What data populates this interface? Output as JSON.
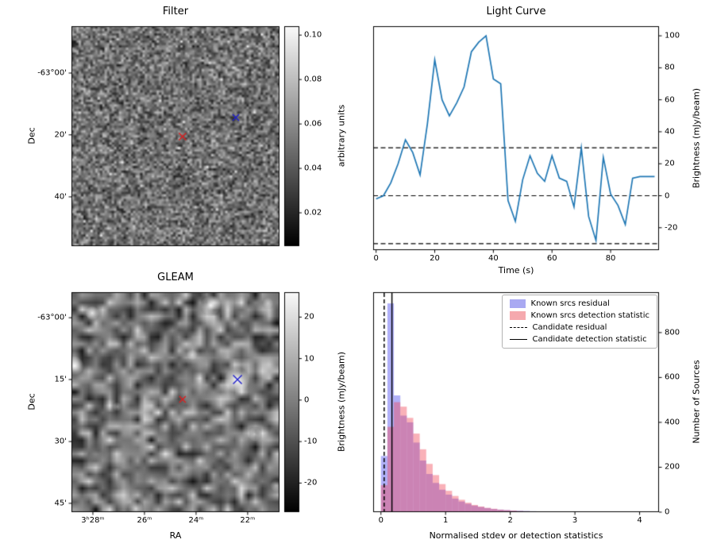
{
  "image_panels": [
    {
      "id": "filter",
      "title": "Filter",
      "ylabel": "Dec",
      "yticks": [
        {
          "label": "-63°00'",
          "f": 0.213
        },
        {
          "label": "20'",
          "f": 0.494
        },
        {
          "label": "40'",
          "f": 0.776
        }
      ],
      "xticks": [],
      "colorbar": {
        "label": "arbitrary units",
        "vmin": 0.005,
        "vmax": 0.104,
        "ticks": [
          {
            "label": "0.10",
            "v": 0.1
          },
          {
            "label": "0.08",
            "v": 0.08
          },
          {
            "label": "0.06",
            "v": 0.06
          },
          {
            "label": "0.04",
            "v": 0.04
          },
          {
            "label": "0.02",
            "v": 0.02
          }
        ]
      },
      "markers": [
        {
          "shape": "x",
          "color": "#dd2020",
          "fx": 0.534,
          "fy": 0.502,
          "size": 9
        },
        {
          "shape": "x",
          "color": "#2020cc",
          "fx": 0.79,
          "fy": 0.415,
          "size": 8
        }
      ]
    },
    {
      "id": "gleam",
      "title": "GLEAM",
      "ylabel": "Dec",
      "xlabel": "RA",
      "yticks": [
        {
          "label": "-63°00'",
          "f": 0.116
        },
        {
          "label": "15'",
          "f": 0.397
        },
        {
          "label": "30'",
          "f": 0.679
        },
        {
          "label": "45'",
          "f": 0.96
        }
      ],
      "xticks": [
        {
          "label": "3ʰ28ᵐ",
          "f": 0.103
        },
        {
          "label": "26ᵐ",
          "f": 0.351
        },
        {
          "label": "24ᵐ",
          "f": 0.599
        },
        {
          "label": "22ᵐ",
          "f": 0.847
        }
      ],
      "colorbar": {
        "label": "Brightness (mJy/beam)",
        "vmin": -27,
        "vmax": 26,
        "ticks": [
          {
            "label": "20",
            "v": 20
          },
          {
            "label": "10",
            "v": 10
          },
          {
            "label": "0",
            "v": 0
          },
          {
            "label": "-10",
            "v": -10
          },
          {
            "label": "-20",
            "v": -20
          }
        ]
      },
      "markers": [
        {
          "shape": "x",
          "color": "#dd2020",
          "fx": 0.534,
          "fy": 0.487,
          "size": 8
        },
        {
          "shape": "x",
          "color": "#2020cc",
          "fx": 0.798,
          "fy": 0.397,
          "size": 11
        }
      ]
    }
  ],
  "chart_data": [
    {
      "id": "light_curve",
      "type": "line",
      "title": "Light Curve",
      "xlabel": "Time (s)",
      "ylabel": "Brightness (mJy/beam)",
      "xlim": [
        -1,
        96.5
      ],
      "ylim": [
        -34,
        106
      ],
      "xticks": [
        0,
        20,
        40,
        60,
        80
      ],
      "yticks": [
        -20,
        0,
        20,
        40,
        60,
        80,
        100
      ],
      "yaxis_side": "right",
      "line_color": "#1f77b4",
      "threshold_lines": {
        "style": "dashed",
        "color": "#000000",
        "values": [
          30,
          0,
          -30
        ]
      },
      "x": [
        0,
        2.5,
        5,
        7.5,
        10,
        12.5,
        15,
        17.5,
        20,
        22.5,
        25,
        27.5,
        30,
        32.5,
        35,
        37.5,
        40,
        42.5,
        45,
        47.5,
        50,
        52.5,
        55,
        57.5,
        60,
        62.5,
        65,
        67.5,
        70,
        72.5,
        75,
        77.5,
        80,
        82.5,
        85,
        87.5,
        90,
        92.5,
        95
      ],
      "y": [
        -2,
        0,
        8,
        20,
        35,
        27,
        13,
        45,
        85,
        60,
        50,
        58,
        68,
        90,
        96,
        100,
        73,
        70,
        -3,
        -16,
        10,
        25,
        14,
        9,
        25,
        11,
        9,
        -7,
        30,
        -13,
        -28,
        24,
        1,
        -6,
        -18,
        11,
        12,
        12,
        12
      ]
    },
    {
      "id": "histogram",
      "type": "bar",
      "title": "",
      "xlabel": "Normalised stdev or detection statistics",
      "ylabel": "Number of Sources",
      "xlim": [
        -0.12,
        4.3
      ],
      "ylim": [
        0,
        980
      ],
      "xticks": [
        0,
        1,
        2,
        3,
        4
      ],
      "yticks": [
        0,
        200,
        400,
        600,
        800
      ],
      "yaxis_side": "right",
      "bin_start": 0,
      "bin_width": 0.1,
      "series": [
        {
          "name": "Known srcs residual",
          "color": "rgba(80,80,240,0.45)",
          "legend_color": "#a9a9f2",
          "values": [
            250,
            930,
            520,
            430,
            400,
            310,
            230,
            170,
            130,
            100,
            78,
            60,
            47,
            37,
            29,
            23,
            18,
            14,
            11,
            9,
            7,
            6,
            5,
            4,
            3,
            3,
            2,
            2,
            2,
            1,
            1,
            1,
            1,
            1,
            0,
            1,
            0,
            1,
            0,
            1,
            0,
            1
          ]
        },
        {
          "name": "Known srcs detection statistic",
          "color": "rgba(240,70,85,0.42)",
          "legend_color": "#f5a9ae",
          "values": [
            120,
            380,
            490,
            470,
            420,
            350,
            280,
            215,
            165,
            125,
            95,
            72,
            55,
            42,
            32,
            25,
            19,
            15,
            11,
            9,
            7,
            5,
            4,
            3,
            3,
            2,
            2,
            1,
            1,
            1,
            1,
            1,
            0,
            1,
            1,
            0,
            1,
            0,
            1,
            0,
            1,
            2
          ]
        }
      ],
      "vlines": [
        {
          "name": "Candidate residual",
          "style": "dashed",
          "x": 0.05,
          "color": "#000000"
        },
        {
          "name": "Candidate detection statistic",
          "style": "solid",
          "x": 0.17,
          "color": "#000000"
        }
      ],
      "legend": [
        {
          "label": "Known srcs residual",
          "swatch": "fill-blue"
        },
        {
          "label": "Known srcs detection statistic",
          "swatch": "fill-pink"
        },
        {
          "label": "Candidate residual",
          "swatch": "dashed-line"
        },
        {
          "label": "Candidate detection statistic",
          "swatch": "solid-line"
        }
      ],
      "legend_position": "upper right"
    }
  ]
}
